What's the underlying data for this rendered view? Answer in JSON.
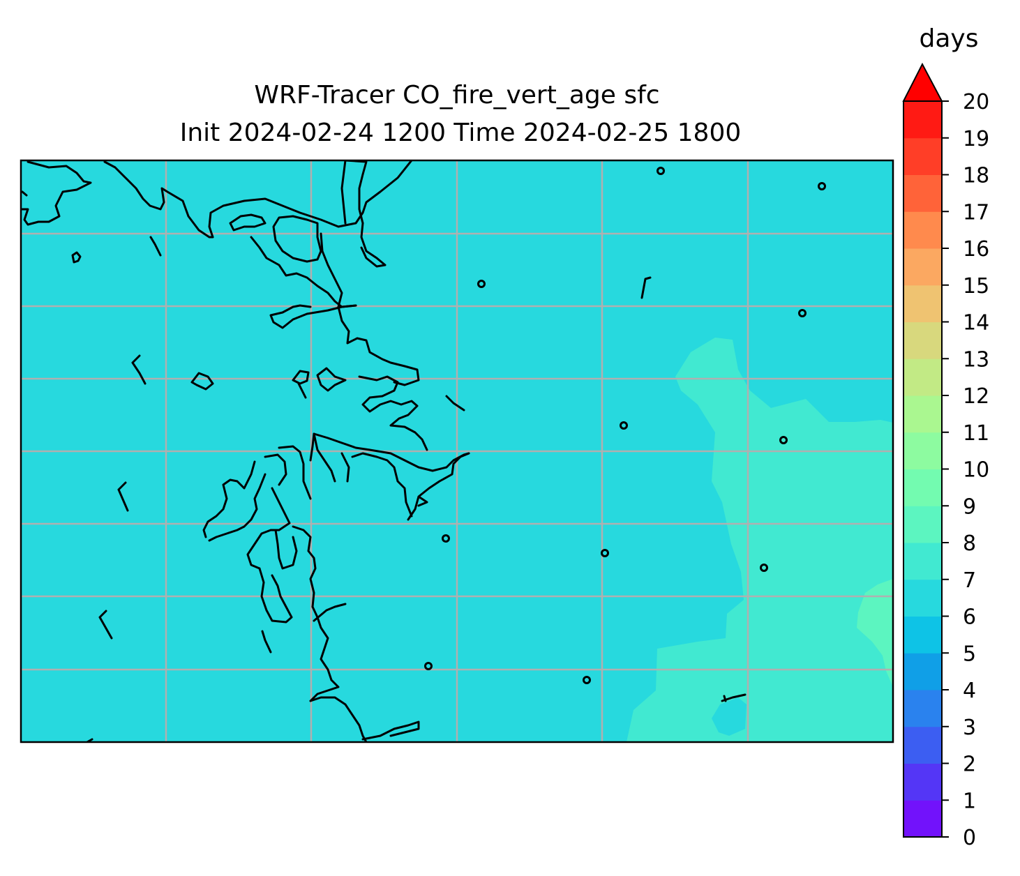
{
  "figure": {
    "title_line1": "WRF-Tracer CO_fire_vert_age sfc",
    "title_line2": "Init 2024-02-24 1200 Time 2024-02-25 1800"
  },
  "colorbar": {
    "unit_label": "days",
    "min": 0,
    "max": 20,
    "step": 1,
    "extend": "max",
    "ticks": [
      "0",
      "1",
      "2",
      "3",
      "4",
      "5",
      "6",
      "7",
      "8",
      "9",
      "10",
      "11",
      "12",
      "13",
      "14",
      "15",
      "16",
      "17",
      "18",
      "19",
      "20"
    ],
    "colors": [
      "#7212fb",
      "#5436f6",
      "#3c5ef2",
      "#2a82ee",
      "#109fe7",
      "#0ec3e6",
      "#27d9de",
      "#41e9d1",
      "#5cf5c0",
      "#73fbb0",
      "#8dfba0",
      "#aaf790",
      "#c2ea85",
      "#d8d87d",
      "#efc371",
      "#fba861",
      "#ff8a4d",
      "#ff6339",
      "#ff3e27",
      "#ff1a14"
    ],
    "extend_color": "#ff0000"
  },
  "map": {
    "background_value_days": 6.5,
    "regions": [
      {
        "label": "background",
        "value_days": 6.5,
        "color": "#27d9de"
      },
      {
        "label": "east-band",
        "value_days": 7.5,
        "color": "#41e9d1"
      },
      {
        "label": "southeast-patch",
        "value_days": 8.3,
        "color": "#5cf5c0"
      }
    ],
    "gridlines": true,
    "coastlines": true
  }
}
